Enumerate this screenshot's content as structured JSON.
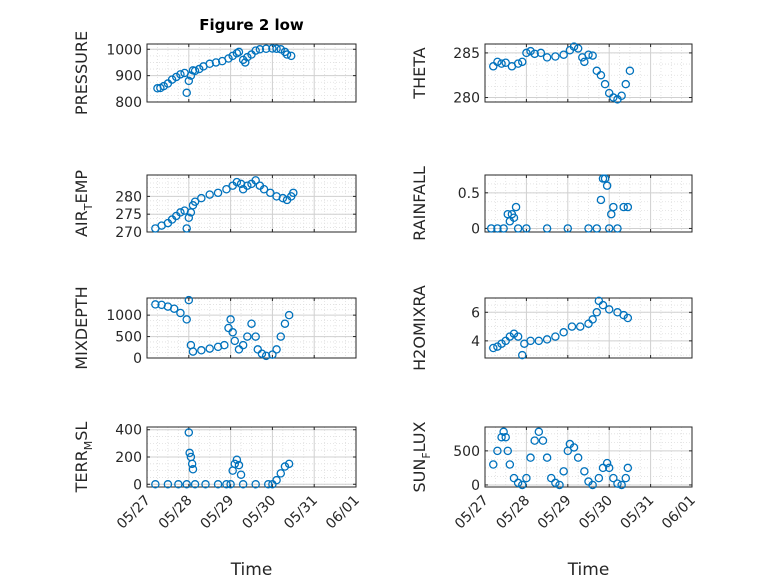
{
  "figure": {
    "title": "Figure 2 low",
    "background": "#ffffff"
  },
  "colors": {
    "marker": "#0072BD",
    "axis": "#262626",
    "grid": "#dedede"
  },
  "chart_data": [
    {
      "id": "pressure",
      "type": "scatter",
      "title": "Figure 2 low",
      "ylabel": "PRESSURE",
      "ylabel_sub": "",
      "xlabel": "",
      "ylim": [
        800,
        1020
      ],
      "yticks": [
        800,
        900,
        1000
      ],
      "xlim": [
        0,
        5
      ],
      "xticks": [
        "05/27",
        "05/28",
        "05/29",
        "05/30",
        "05/31",
        "06/01"
      ],
      "show_xticklabels": false,
      "grid": true,
      "points": [
        [
          0.25,
          852
        ],
        [
          0.32,
          853
        ],
        [
          0.4,
          860
        ],
        [
          0.5,
          870
        ],
        [
          0.6,
          885
        ],
        [
          0.7,
          895
        ],
        [
          0.8,
          905
        ],
        [
          0.9,
          910
        ],
        [
          0.95,
          835
        ],
        [
          1.0,
          880
        ],
        [
          1.05,
          900
        ],
        [
          1.1,
          920
        ],
        [
          1.15,
          918
        ],
        [
          1.25,
          925
        ],
        [
          1.35,
          935
        ],
        [
          1.5,
          945
        ],
        [
          1.65,
          950
        ],
        [
          1.8,
          955
        ],
        [
          1.95,
          965
        ],
        [
          2.05,
          975
        ],
        [
          2.15,
          985
        ],
        [
          2.2,
          990
        ],
        [
          2.3,
          960
        ],
        [
          2.35,
          950
        ],
        [
          2.4,
          970
        ],
        [
          2.5,
          980
        ],
        [
          2.6,
          995
        ],
        [
          2.7,
          1000
        ],
        [
          2.85,
          1002
        ],
        [
          3.0,
          1003
        ],
        [
          3.1,
          1002
        ],
        [
          3.2,
          1000
        ],
        [
          3.3,
          990
        ],
        [
          3.35,
          980
        ],
        [
          3.45,
          975
        ]
      ]
    },
    {
      "id": "theta",
      "type": "scatter",
      "ylabel": "THETA",
      "ylabel_sub": "",
      "xlabel": "",
      "ylim": [
        279.5,
        286
      ],
      "yticks": [
        280,
        285
      ],
      "xlim": [
        0,
        5
      ],
      "xticks": [
        "05/27",
        "05/28",
        "05/29",
        "05/30",
        "05/31",
        "06/01"
      ],
      "show_xticklabels": false,
      "grid": true,
      "points": [
        [
          0.2,
          283.5
        ],
        [
          0.3,
          284
        ],
        [
          0.4,
          283.8
        ],
        [
          0.5,
          283.9
        ],
        [
          0.65,
          283.5
        ],
        [
          0.8,
          283.8
        ],
        [
          0.9,
          284.0
        ],
        [
          1.0,
          285
        ],
        [
          1.1,
          285.2
        ],
        [
          1.2,
          284.9
        ],
        [
          1.35,
          285
        ],
        [
          1.5,
          284.5
        ],
        [
          1.7,
          284.6
        ],
        [
          1.9,
          284.8
        ],
        [
          2.05,
          285.3
        ],
        [
          2.15,
          285.7
        ],
        [
          2.25,
          285.5
        ],
        [
          2.35,
          284.5
        ],
        [
          2.4,
          284
        ],
        [
          2.5,
          284.8
        ],
        [
          2.6,
          284.7
        ],
        [
          2.7,
          283
        ],
        [
          2.8,
          282.5
        ],
        [
          2.9,
          281.5
        ],
        [
          3.0,
          280.5
        ],
        [
          3.1,
          280
        ],
        [
          3.2,
          279.8
        ],
        [
          3.3,
          280.2
        ],
        [
          3.4,
          281.5
        ],
        [
          3.5,
          283
        ]
      ]
    },
    {
      "id": "air_temp",
      "type": "scatter",
      "ylabel": "AIR",
      "ylabel_sub": "T",
      "ylabel_suffix": "EMP",
      "xlabel": "",
      "ylim": [
        270,
        286
      ],
      "yticks": [
        270,
        275,
        280
      ],
      "xlim": [
        0,
        5
      ],
      "xticks": [
        "05/27",
        "05/28",
        "05/29",
        "05/30",
        "05/31",
        "06/01"
      ],
      "show_xticklabels": false,
      "grid": true,
      "points": [
        [
          0.2,
          271
        ],
        [
          0.35,
          271.8
        ],
        [
          0.5,
          272.5
        ],
        [
          0.6,
          273.5
        ],
        [
          0.7,
          274.5
        ],
        [
          0.8,
          275.5
        ],
        [
          0.9,
          276
        ],
        [
          0.95,
          271
        ],
        [
          1.0,
          274
        ],
        [
          1.05,
          275.5
        ],
        [
          1.1,
          277.5
        ],
        [
          1.15,
          278.5
        ],
        [
          1.3,
          279.5
        ],
        [
          1.5,
          280.5
        ],
        [
          1.7,
          281
        ],
        [
          1.9,
          282
        ],
        [
          2.05,
          283
        ],
        [
          2.15,
          284
        ],
        [
          2.25,
          283.5
        ],
        [
          2.3,
          282
        ],
        [
          2.4,
          283
        ],
        [
          2.5,
          283.5
        ],
        [
          2.6,
          284.5
        ],
        [
          2.7,
          283
        ],
        [
          2.8,
          282
        ],
        [
          2.95,
          281
        ],
        [
          3.1,
          280
        ],
        [
          3.25,
          279.5
        ],
        [
          3.35,
          279
        ],
        [
          3.45,
          280
        ],
        [
          3.5,
          281
        ]
      ]
    },
    {
      "id": "rainfall",
      "type": "scatter",
      "ylabel": "RAINFALL",
      "ylabel_sub": "",
      "xlabel": "",
      "ylim": [
        -0.05,
        0.75
      ],
      "yticks": [
        0,
        0.5
      ],
      "xlim": [
        0,
        5
      ],
      "xticks": [
        "05/27",
        "05/28",
        "05/29",
        "05/30",
        "05/31",
        "06/01"
      ],
      "show_xticklabels": false,
      "grid": true,
      "points": [
        [
          0.15,
          0
        ],
        [
          0.3,
          0
        ],
        [
          0.45,
          0
        ],
        [
          0.55,
          0.2
        ],
        [
          0.6,
          0.1
        ],
        [
          0.65,
          0.2
        ],
        [
          0.7,
          0.15
        ],
        [
          0.75,
          0.3
        ],
        [
          0.8,
          0
        ],
        [
          1.0,
          0
        ],
        [
          1.5,
          0
        ],
        [
          2.0,
          0
        ],
        [
          2.5,
          0
        ],
        [
          2.7,
          0
        ],
        [
          2.8,
          0.4
        ],
        [
          2.85,
          0.7
        ],
        [
          2.9,
          0.7
        ],
        [
          2.95,
          0.6
        ],
        [
          3.0,
          0
        ],
        [
          3.05,
          0.2
        ],
        [
          3.1,
          0.3
        ],
        [
          3.2,
          0
        ],
        [
          3.35,
          0.3
        ],
        [
          3.45,
          0.3
        ]
      ]
    },
    {
      "id": "mixdepth",
      "type": "scatter",
      "ylabel": "MIXDEPTH",
      "ylabel_sub": "",
      "xlabel": "",
      "ylim": [
        0,
        1400
      ],
      "yticks": [
        0,
        500,
        1000
      ],
      "xlim": [
        0,
        5
      ],
      "xticks": [
        "05/27",
        "05/28",
        "05/29",
        "05/30",
        "05/31",
        "06/01"
      ],
      "show_xticklabels": false,
      "grid": true,
      "points": [
        [
          0.2,
          1250
        ],
        [
          0.35,
          1240
        ],
        [
          0.5,
          1200
        ],
        [
          0.65,
          1150
        ],
        [
          0.8,
          1050
        ],
        [
          0.95,
          900
        ],
        [
          1.0,
          1350
        ],
        [
          1.05,
          300
        ],
        [
          1.1,
          150
        ],
        [
          1.3,
          180
        ],
        [
          1.5,
          220
        ],
        [
          1.7,
          260
        ],
        [
          1.85,
          300
        ],
        [
          1.95,
          700
        ],
        [
          2.0,
          900
        ],
        [
          2.05,
          600
        ],
        [
          2.1,
          400
        ],
        [
          2.2,
          200
        ],
        [
          2.3,
          300
        ],
        [
          2.4,
          500
        ],
        [
          2.5,
          800
        ],
        [
          2.6,
          500
        ],
        [
          2.65,
          200
        ],
        [
          2.75,
          100
        ],
        [
          2.85,
          50
        ],
        [
          3.0,
          80
        ],
        [
          3.1,
          200
        ],
        [
          3.2,
          500
        ],
        [
          3.3,
          800
        ],
        [
          3.4,
          1000
        ]
      ]
    },
    {
      "id": "h2omixra",
      "type": "scatter",
      "ylabel": "H2OMIXRA",
      "ylabel_sub": "",
      "xlabel": "",
      "ylim": [
        2.8,
        7
      ],
      "yticks": [
        4,
        6
      ],
      "xlim": [
        0,
        5
      ],
      "xticks": [
        "05/27",
        "05/28",
        "05/29",
        "05/30",
        "05/31",
        "06/01"
      ],
      "show_xticklabels": false,
      "grid": true,
      "points": [
        [
          0.2,
          3.5
        ],
        [
          0.3,
          3.6
        ],
        [
          0.4,
          3.8
        ],
        [
          0.5,
          4.0
        ],
        [
          0.6,
          4.3
        ],
        [
          0.7,
          4.5
        ],
        [
          0.8,
          4.3
        ],
        [
          0.9,
          3.0
        ],
        [
          0.95,
          3.8
        ],
        [
          1.1,
          4.0
        ],
        [
          1.3,
          4.0
        ],
        [
          1.5,
          4.1
        ],
        [
          1.7,
          4.3
        ],
        [
          1.9,
          4.6
        ],
        [
          2.1,
          5.0
        ],
        [
          2.3,
          5.0
        ],
        [
          2.5,
          5.2
        ],
        [
          2.6,
          5.5
        ],
        [
          2.7,
          6.0
        ],
        [
          2.75,
          6.8
        ],
        [
          2.85,
          6.5
        ],
        [
          3.0,
          6.2
        ],
        [
          3.2,
          6.0
        ],
        [
          3.35,
          5.8
        ],
        [
          3.45,
          5.6
        ]
      ]
    },
    {
      "id": "terr_msl",
      "type": "scatter",
      "ylabel": "TERR",
      "ylabel_sub": "M",
      "ylabel_suffix": "SL",
      "xlabel": "Time",
      "ylim": [
        -20,
        420
      ],
      "yticks": [
        0,
        200,
        400
      ],
      "xlim": [
        0,
        5
      ],
      "xticks": [
        "05/27",
        "05/28",
        "05/29",
        "05/30",
        "05/31",
        "06/01"
      ],
      "show_xticklabels": true,
      "grid": true,
      "points": [
        [
          0.2,
          0
        ],
        [
          0.5,
          0
        ],
        [
          0.75,
          0
        ],
        [
          0.95,
          0
        ],
        [
          1.0,
          380
        ],
        [
          1.02,
          230
        ],
        [
          1.05,
          200
        ],
        [
          1.08,
          150
        ],
        [
          1.1,
          110
        ],
        [
          1.15,
          0
        ],
        [
          1.4,
          0
        ],
        [
          1.7,
          0
        ],
        [
          1.9,
          0
        ],
        [
          2.0,
          0
        ],
        [
          2.05,
          100
        ],
        [
          2.1,
          150
        ],
        [
          2.15,
          180
        ],
        [
          2.2,
          140
        ],
        [
          2.25,
          70
        ],
        [
          2.3,
          0
        ],
        [
          2.6,
          0
        ],
        [
          2.9,
          0
        ],
        [
          3.0,
          0
        ],
        [
          3.1,
          30
        ],
        [
          3.2,
          80
        ],
        [
          3.3,
          130
        ],
        [
          3.4,
          150
        ]
      ]
    },
    {
      "id": "sun_flux",
      "type": "scatter",
      "ylabel": "SUN",
      "ylabel_sub": "F",
      "ylabel_suffix": "LUX",
      "xlabel": "Time",
      "ylim": [
        -30,
        850
      ],
      "yticks": [
        0,
        500
      ],
      "xlim": [
        0,
        5
      ],
      "xticks": [
        "05/27",
        "05/28",
        "05/29",
        "05/30",
        "05/31",
        "06/01"
      ],
      "show_xticklabels": true,
      "grid": true,
      "points": [
        [
          0.2,
          300
        ],
        [
          0.3,
          500
        ],
        [
          0.4,
          700
        ],
        [
          0.45,
          780
        ],
        [
          0.5,
          700
        ],
        [
          0.55,
          500
        ],
        [
          0.6,
          300
        ],
        [
          0.7,
          100
        ],
        [
          0.8,
          30
        ],
        [
          0.9,
          0
        ],
        [
          1.0,
          100
        ],
        [
          1.1,
          400
        ],
        [
          1.2,
          650
        ],
        [
          1.3,
          780
        ],
        [
          1.4,
          650
        ],
        [
          1.5,
          400
        ],
        [
          1.6,
          100
        ],
        [
          1.7,
          30
        ],
        [
          1.8,
          0
        ],
        [
          1.9,
          200
        ],
        [
          2.0,
          500
        ],
        [
          2.05,
          600
        ],
        [
          2.15,
          550
        ],
        [
          2.25,
          400
        ],
        [
          2.4,
          200
        ],
        [
          2.5,
          50
        ],
        [
          2.6,
          0
        ],
        [
          2.75,
          100
        ],
        [
          2.85,
          250
        ],
        [
          2.95,
          320
        ],
        [
          3.0,
          250
        ],
        [
          3.1,
          100
        ],
        [
          3.2,
          20
        ],
        [
          3.3,
          0
        ],
        [
          3.4,
          100
        ],
        [
          3.45,
          250
        ]
      ]
    }
  ]
}
